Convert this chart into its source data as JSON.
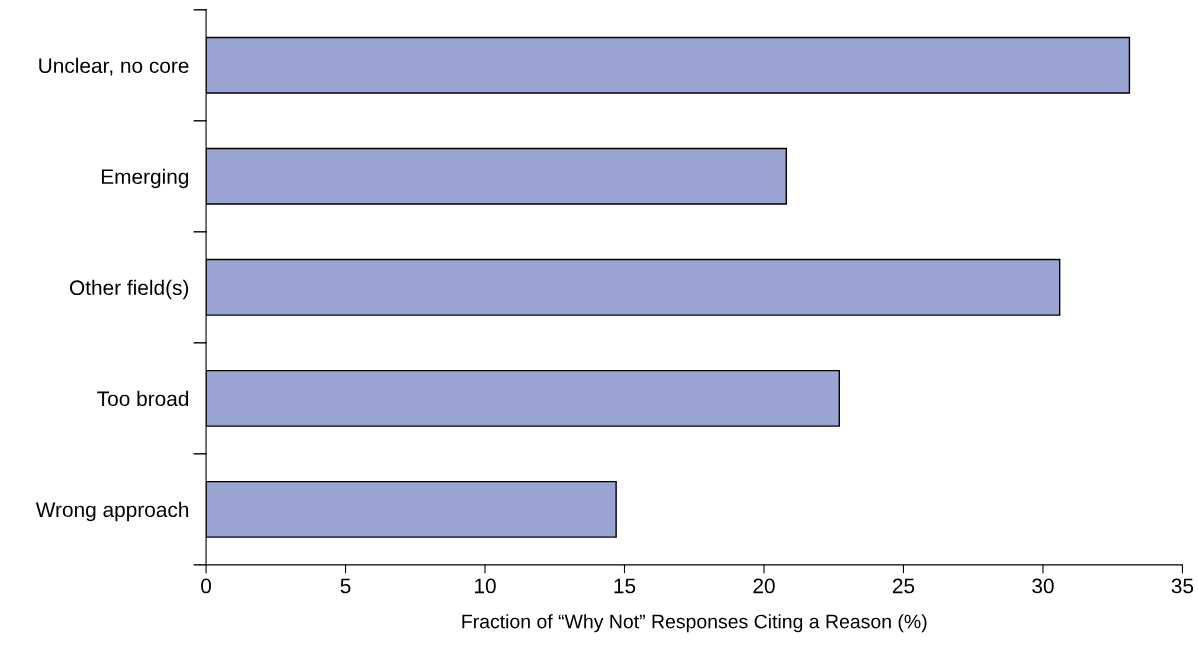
{
  "chart_data": {
    "type": "bar",
    "orientation": "horizontal",
    "categories": [
      "Unclear, no core",
      "Emerging",
      "Other field(s)",
      "Too broad",
      "Wrong approach"
    ],
    "values": [
      33.1,
      20.8,
      30.6,
      22.7,
      14.7
    ],
    "color": "#99a4d2",
    "xlabel": "Fraction of “Why Not” Responses Citing a Reason (%)",
    "xlim": [
      0,
      35
    ],
    "xticks": [
      0,
      5,
      10,
      15,
      20,
      25,
      30,
      35
    ],
    "grid": false,
    "legend": false
  }
}
